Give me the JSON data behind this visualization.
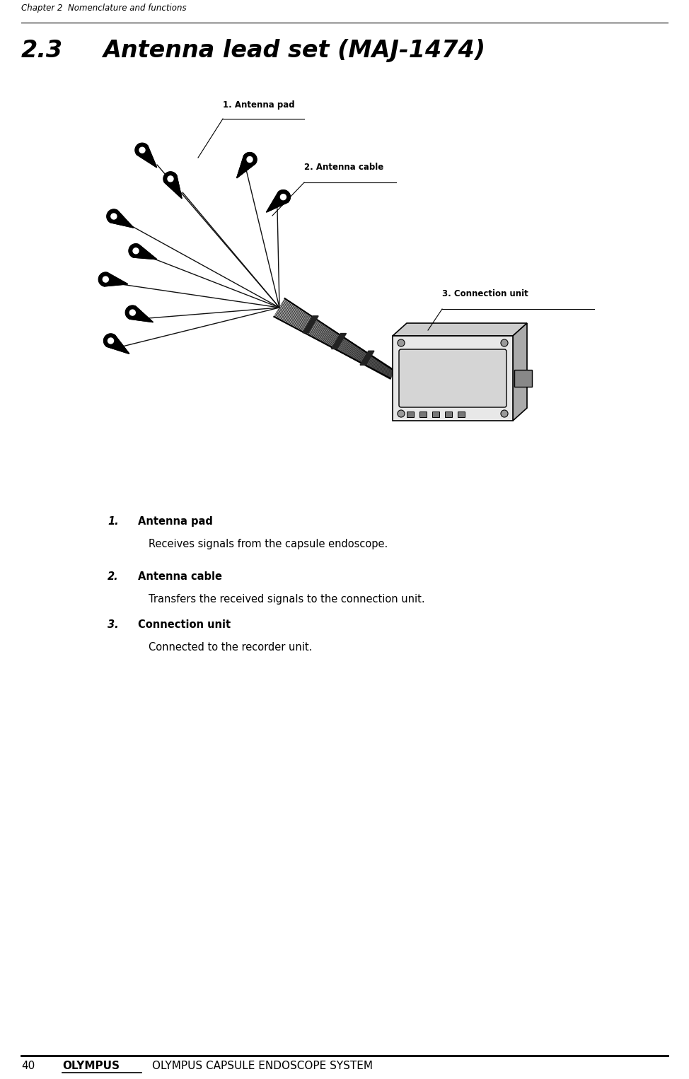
{
  "page_number": "40",
  "header_text": "Chapter 2  Nomenclature and functions",
  "footer_brand": "OLYMPUS",
  "footer_text": "OLYMPUS CAPSULE ENDOSCOPE SYSTEM",
  "section_number": "2.3",
  "section_title": "Antenna lead set (MAJ-1474)",
  "label1": "1. Antenna pad",
  "label2": "2. Antenna cable",
  "label3": "3. Connection unit",
  "item1_num": "1.",
  "item1_bold": "Antenna pad",
  "item1_desc": "Receives signals from the capsule endoscope.",
  "item2_num": "2.",
  "item2_bold": "Antenna cable",
  "item2_desc": "Transfers the received signals to the connection unit.",
  "item3_num": "3.",
  "item3_bold": "Connection unit",
  "item3_desc": "Connected to the recorder unit.",
  "bg_color": "#ffffff",
  "text_color": "#000000",
  "header_fontsize": 8.5,
  "section_fontsize": 24,
  "body_fontsize": 10.5,
  "label_fontsize": 8.5
}
